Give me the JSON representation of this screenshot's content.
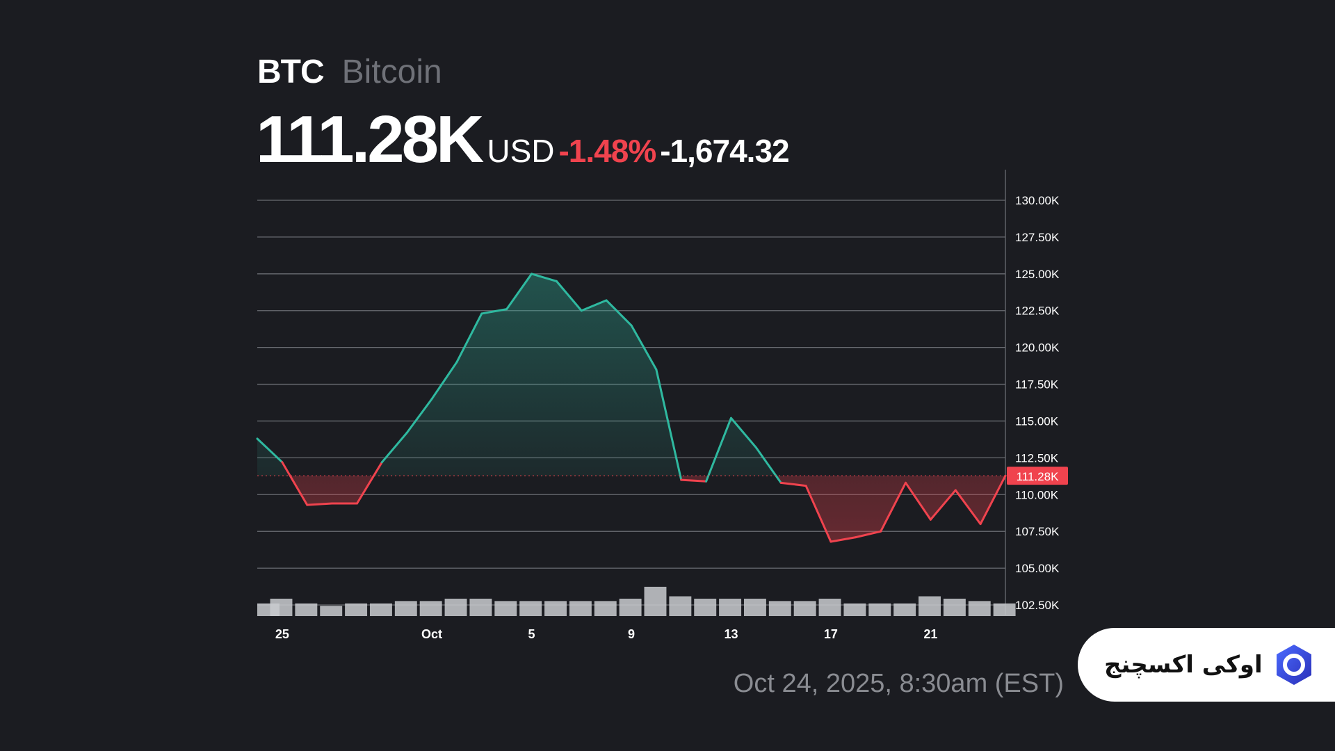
{
  "asset": {
    "ticker": "BTC",
    "name": "Bitcoin",
    "price": "111.28K",
    "currency": "USD",
    "change_pct": "-1.48%",
    "change_abs": "-1,674.32"
  },
  "timestamp": "Oct 24, 2025, 8:30am (EST)",
  "brand": {
    "label": "اوکی اکسچنج",
    "logo_icon": "okx-hexagon-logo-icon"
  },
  "colors": {
    "background": "#1b1c21",
    "up": "#2fb9a0",
    "down": "#f0434e",
    "grid": "#6a6c72",
    "axis_text": "#ffffff",
    "volume": "#c9cbcf"
  },
  "chart_data": {
    "type": "line",
    "y_unit": "USD",
    "ylim": [
      102500,
      130000
    ],
    "yticks": [
      102500,
      105000,
      107500,
      110000,
      112500,
      115000,
      117500,
      120000,
      122500,
      125000,
      127500,
      130000
    ],
    "ytick_labels": [
      "102.50K",
      "105.00K",
      "107.50K",
      "110.00K",
      "112.50K",
      "115.00K",
      "117.50K",
      "120.00K",
      "122.50K",
      "125.00K",
      "127.50K",
      "130.00K"
    ],
    "x_range": [
      "2025-09-24",
      "2025-10-24"
    ],
    "xtick_labels": [
      {
        "date": "2025-09-25",
        "label": "25"
      },
      {
        "date": "2025-10-01",
        "label": "Oct"
      },
      {
        "date": "2025-10-05",
        "label": "5"
      },
      {
        "date": "2025-10-09",
        "label": "9"
      },
      {
        "date": "2025-10-13",
        "label": "13"
      },
      {
        "date": "2025-10-17",
        "label": "17"
      },
      {
        "date": "2025-10-21",
        "label": "21"
      }
    ],
    "reference_price": 111280,
    "reference_label": "111.28K",
    "grid": true,
    "series": [
      {
        "x": [
          "2025-09-24",
          "2025-09-25",
          "2025-09-26",
          "2025-09-27",
          "2025-09-28",
          "2025-09-29",
          "2025-09-30",
          "2025-10-01",
          "2025-10-02",
          "2025-10-03",
          "2025-10-04",
          "2025-10-05",
          "2025-10-06",
          "2025-10-07",
          "2025-10-08",
          "2025-10-09",
          "2025-10-10",
          "2025-10-11",
          "2025-10-12",
          "2025-10-13",
          "2025-10-14",
          "2025-10-15",
          "2025-10-16",
          "2025-10-17",
          "2025-10-18",
          "2025-10-19",
          "2025-10-20",
          "2025-10-21",
          "2025-10-22",
          "2025-10-23",
          "2025-10-24"
        ],
        "values": [
          113800,
          112200,
          109300,
          109400,
          109400,
          112200,
          114200,
          116500,
          119000,
          122300,
          122600,
          125000,
          124500,
          122500,
          123200,
          121500,
          118500,
          111000,
          110900,
          115200,
          113200,
          110800,
          110600,
          106800,
          107100,
          107500,
          110800,
          108300,
          110300,
          108000,
          111280
        ]
      }
    ],
    "volume": {
      "note": "relative volume bars along bottom, no scale printed",
      "values": [
        0.3,
        0.5,
        0.3,
        0.2,
        0.3,
        0.3,
        0.4,
        0.4,
        0.5,
        0.5,
        0.4,
        0.4,
        0.4,
        0.4,
        0.4,
        0.5,
        1.0,
        0.6,
        0.5,
        0.5,
        0.5,
        0.4,
        0.4,
        0.5,
        0.3,
        0.3,
        0.3,
        0.6,
        0.5,
        0.4,
        0.3
      ]
    }
  }
}
